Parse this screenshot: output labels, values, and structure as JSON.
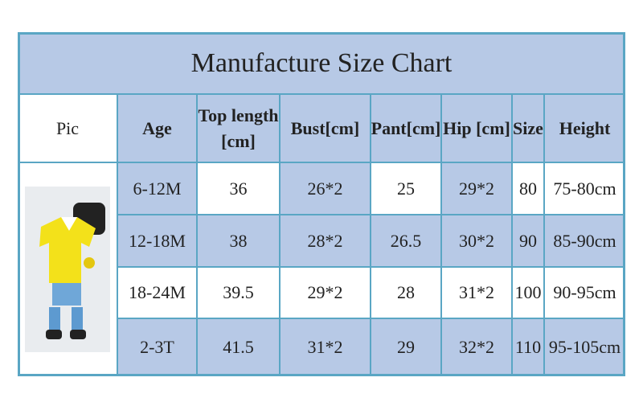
{
  "table": {
    "title": "Manufacture  Size Chart",
    "header": [
      "Pic",
      "Age",
      "Top length [cm]",
      "Bust[cm]",
      "Pant[cm]",
      "Hip [cm]",
      "Size",
      "Height"
    ],
    "rows": [
      [
        "6-12M",
        "36",
        "26*2",
        "25",
        "29*2",
        "80",
        "75-80cm"
      ],
      [
        "12-18M",
        "38",
        "28*2",
        "26.5",
        "30*2",
        "90",
        "85-90cm"
      ],
      [
        "18-24M",
        "39.5",
        "29*2",
        "28",
        "31*2",
        "100",
        "90-95cm"
      ],
      [
        "2-3T",
        "41.5",
        "31*2",
        "29",
        "32*2",
        "110",
        "95-105cm"
      ]
    ]
  }
}
